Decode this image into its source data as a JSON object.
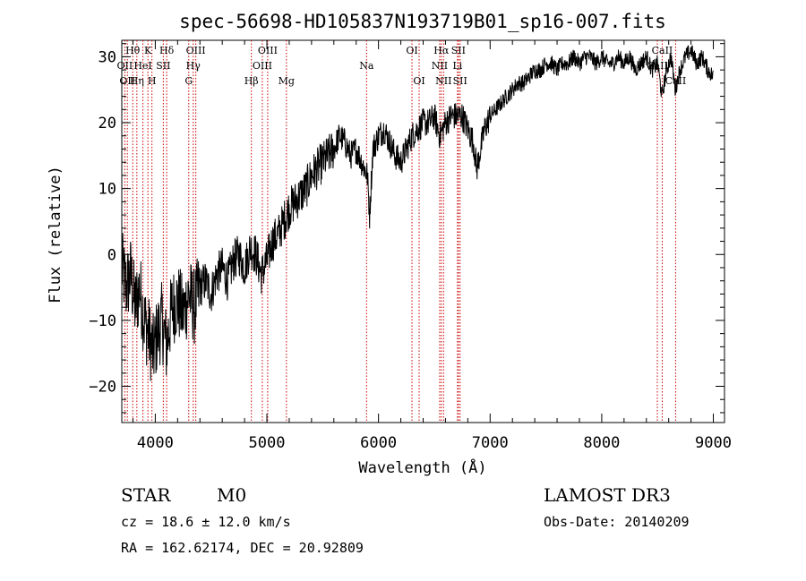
{
  "chart_data": {
    "type": "line",
    "title": "spec-56698-HD105837N193719B01_sp16-007.fits",
    "xlabel": "Wavelength (Å)",
    "ylabel": "Flux (relative)",
    "xlim": [
      3700,
      9100
    ],
    "ylim": [
      -25.5,
      32.5
    ],
    "xticks": [
      4000,
      5000,
      6000,
      7000,
      8000,
      9000
    ],
    "yticks": [
      -20,
      -10,
      0,
      10,
      20,
      30
    ],
    "series": [
      {
        "name": "flux",
        "x": [
          3700,
          3740,
          3780,
          3820,
          3860,
          3900,
          3940,
          3980,
          4020,
          4060,
          4100,
          4150,
          4200,
          4250,
          4300,
          4350,
          4400,
          4450,
          4500,
          4550,
          4600,
          4650,
          4700,
          4750,
          4800,
          4850,
          4900,
          4950,
          5000,
          5050,
          5100,
          5150,
          5200,
          5250,
          5300,
          5350,
          5400,
          5450,
          5500,
          5550,
          5600,
          5650,
          5700,
          5750,
          5800,
          5850,
          5900,
          5920,
          5950,
          6000,
          6050,
          6100,
          6150,
          6200,
          6250,
          6300,
          6350,
          6400,
          6450,
          6500,
          6550,
          6600,
          6650,
          6700,
          6750,
          6800,
          6850,
          6880,
          6950,
          7000,
          7050,
          7100,
          7150,
          7200,
          7250,
          7300,
          7350,
          7400,
          7450,
          7500,
          7550,
          7600,
          7650,
          7700,
          7750,
          7800,
          7850,
          7900,
          7950,
          8000,
          8050,
          8100,
          8150,
          8200,
          8250,
          8300,
          8350,
          8400,
          8450,
          8500,
          8540,
          8580,
          8620,
          8660,
          8700,
          8750,
          8800,
          8850,
          8900,
          8950,
          9000
        ],
        "y": [
          -2,
          -5,
          -3,
          -8,
          -5,
          -10,
          -12,
          -15,
          -12,
          -10,
          -14,
          -8,
          -7,
          -9,
          -6,
          -8,
          -5,
          -4,
          -6,
          -3,
          -2,
          -4,
          -1,
          0,
          -2,
          1,
          0,
          -3,
          -1,
          2,
          3,
          5,
          7,
          8,
          9,
          10,
          12,
          13,
          14,
          15,
          16,
          18,
          17,
          15,
          16,
          14,
          12,
          6,
          16,
          18,
          19,
          17,
          15,
          14,
          16,
          18,
          19,
          20,
          20,
          21,
          18,
          20,
          21,
          21,
          21,
          19,
          17,
          13,
          19,
          21,
          22,
          23,
          24,
          25,
          26,
          26,
          27,
          28,
          28,
          29,
          29,
          28,
          29,
          29,
          30,
          29,
          30,
          30,
          29,
          30,
          29,
          29,
          30,
          29,
          30,
          28,
          29,
          30,
          28,
          29,
          24,
          28,
          30,
          25,
          28,
          30,
          31,
          29,
          30,
          28,
          27
        ]
      }
    ],
    "line_markers": [
      {
        "wavelength": 3727,
        "label": "OII",
        "row": 2
      },
      {
        "wavelength": 3750,
        "label": "OII",
        "row": 3
      },
      {
        "wavelength": 3798,
        "label": "Hθ",
        "row": 1
      },
      {
        "wavelength": 3835,
        "label": "Hη",
        "row": 3
      },
      {
        "wavelength": 3889,
        "label": "HeI",
        "row": 2
      },
      {
        "wavelength": 3934,
        "label": "K",
        "row": 1
      },
      {
        "wavelength": 3970,
        "label": "H",
        "row": 3
      },
      {
        "wavelength": 4072,
        "label": "SII",
        "row": 2
      },
      {
        "wavelength": 4102,
        "label": "Hδ",
        "row": 1
      },
      {
        "wavelength": 4300,
        "label": "G",
        "row": 3
      },
      {
        "wavelength": 4340,
        "label": "Hγ",
        "row": 2
      },
      {
        "wavelength": 4363,
        "label": "OIII",
        "row": 1
      },
      {
        "wavelength": 4861,
        "label": "Hβ",
        "row": 3
      },
      {
        "wavelength": 4959,
        "label": "OIII",
        "row": 2
      },
      {
        "wavelength": 5007,
        "label": "OIII",
        "row": 1
      },
      {
        "wavelength": 5175,
        "label": "Mg",
        "row": 3
      },
      {
        "wavelength": 5893,
        "label": "Na",
        "row": 2
      },
      {
        "wavelength": 6300,
        "label": "OI",
        "row": 1
      },
      {
        "wavelength": 6364,
        "label": "OI",
        "row": 3
      },
      {
        "wavelength": 6548,
        "label": "NII",
        "row": 2
      },
      {
        "wavelength": 6563,
        "label": "Hα",
        "row": 1
      },
      {
        "wavelength": 6583,
        "label": "NII",
        "row": 3
      },
      {
        "wavelength": 6708,
        "label": "Li",
        "row": 2
      },
      {
        "wavelength": 6716,
        "label": "SII",
        "row": 1
      },
      {
        "wavelength": 6731,
        "label": "SII",
        "row": 3
      },
      {
        "wavelength": 8498,
        "label": "CaII",
        "row": 2
      },
      {
        "wavelength": 8542,
        "label": "CaII",
        "row": 1
      },
      {
        "wavelength": 8662,
        "label": "CaII",
        "row": 3
      }
    ]
  },
  "info": {
    "class": "STAR",
    "subclass": "M0",
    "survey": "LAMOST DR3",
    "cz": "cz = 18.6 ± 12.0 km/s",
    "obs_date": "Obs-Date: 20140209",
    "radec": "RA = 162.62174, DEC =  20.92809"
  },
  "colors": {
    "line_marker": "#cc0000",
    "spectrum": "#000000",
    "axes": "#000000"
  }
}
